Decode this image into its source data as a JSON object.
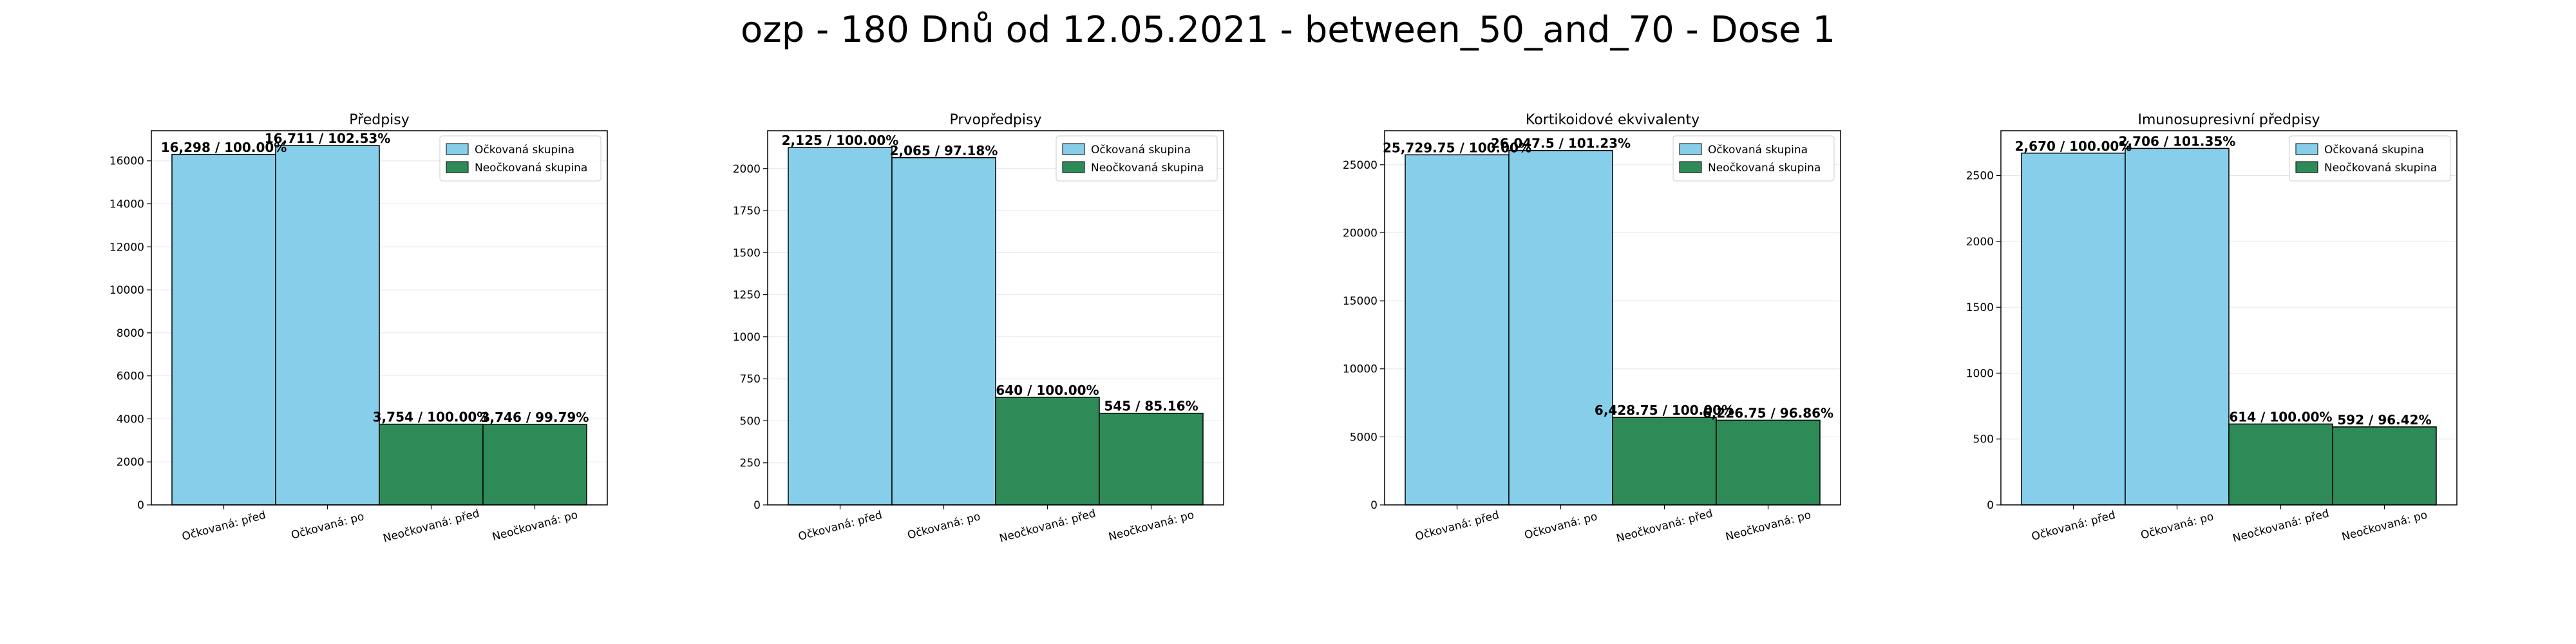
{
  "figure_title": "ozp - 180 Dnů od 12.05.2021 - between_50_and_70 - Dose 1",
  "colors": {
    "vaccinated": "#87CEEB",
    "unvaccinated": "#2E8B57",
    "edge": "#000000",
    "grid": "#e6e6e6"
  },
  "chart_data": [
    {
      "type": "bar",
      "title": "Předpisy",
      "categories": [
        "Očkovaná: před",
        "Očkovaná: po",
        "Neočkovaná: před",
        "Neočkovaná: po"
      ],
      "values": [
        16298,
        16711,
        3754,
        3746
      ],
      "group": [
        "vaccinated",
        "vaccinated",
        "unvaccinated",
        "unvaccinated"
      ],
      "data_labels": [
        "16,298 / 100.00%",
        "16,711 / 102.53%",
        "3,754 / 100.00%",
        "3,746 / 99.79%"
      ],
      "ylim": [
        0,
        17400
      ],
      "yticks": [
        0,
        2000,
        4000,
        6000,
        8000,
        10000,
        12000,
        14000,
        16000
      ],
      "ytick_labels": [
        "0",
        "2000",
        "4000",
        "6000",
        "8000",
        "10000",
        "12000",
        "14000",
        "16000"
      ],
      "legend": [
        "Očkovaná skupina",
        "Neočkovaná skupina"
      ],
      "legend_position": "top-right",
      "grid": true
    },
    {
      "type": "bar",
      "title": "Prvopředpisy",
      "categories": [
        "Očkovaná: před",
        "Očkovaná: po",
        "Neočkovaná: před",
        "Neočkovaná: po"
      ],
      "values": [
        2125,
        2065,
        640,
        545
      ],
      "group": [
        "vaccinated",
        "vaccinated",
        "unvaccinated",
        "unvaccinated"
      ],
      "data_labels": [
        "2,125 / 100.00%",
        "2,065 / 97.18%",
        "640 / 100.00%",
        "545 / 85.16%"
      ],
      "ylim": [
        0,
        2225
      ],
      "yticks": [
        0,
        250,
        500,
        750,
        1000,
        1250,
        1500,
        1750,
        2000
      ],
      "ytick_labels": [
        "0",
        "250",
        "500",
        "750",
        "1000",
        "1250",
        "1500",
        "1750",
        "2000"
      ],
      "legend": [
        "Očkovaná skupina",
        "Neočkovaná skupina"
      ],
      "legend_position": "top-right",
      "grid": true
    },
    {
      "type": "bar",
      "title": "Kortikoidové ekvivalenty",
      "categories": [
        "Očkovaná: před",
        "Očkovaná: po",
        "Neočkovaná: před",
        "Neočkovaná: po"
      ],
      "values": [
        25729.75,
        26047.5,
        6428.75,
        6226.75
      ],
      "group": [
        "vaccinated",
        "vaccinated",
        "unvaccinated",
        "unvaccinated"
      ],
      "data_labels": [
        "25,729.75 / 100.00%",
        "26,047.5 / 101.23%",
        "6,428.75 / 100.00%",
        "6,226.75 / 96.86%"
      ],
      "ylim": [
        0,
        27500
      ],
      "yticks": [
        0,
        5000,
        10000,
        15000,
        20000,
        25000
      ],
      "ytick_labels": [
        "0",
        "5000",
        "10000",
        "15000",
        "20000",
        "25000"
      ],
      "legend": [
        "Očkovaná skupina",
        "Neočkovaná skupina"
      ],
      "legend_position": "top-right",
      "grid": true
    },
    {
      "type": "bar",
      "title": "Imunosupresivní předpisy",
      "categories": [
        "Očkovaná: před",
        "Očkovaná: po",
        "Neočkovaná: před",
        "Neočkovaná: po"
      ],
      "values": [
        2670,
        2706,
        614,
        592
      ],
      "group": [
        "vaccinated",
        "vaccinated",
        "unvaccinated",
        "unvaccinated"
      ],
      "data_labels": [
        "2,670 / 100.00%",
        "2,706 / 101.35%",
        "614 / 100.00%",
        "592 / 96.42%"
      ],
      "ylim": [
        0,
        2840
      ],
      "yticks": [
        0,
        500,
        1000,
        1500,
        2000,
        2500
      ],
      "ytick_labels": [
        "0",
        "500",
        "1000",
        "1500",
        "2000",
        "2500"
      ],
      "legend": [
        "Očkovaná skupina",
        "Neočkovaná skupina"
      ],
      "legend_position": "top-right",
      "grid": true
    }
  ]
}
